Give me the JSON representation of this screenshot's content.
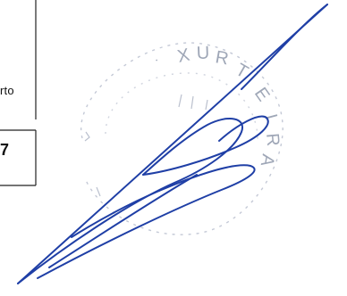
{
  "document": {
    "fragment_top": "rto",
    "fragment_bottom": "7"
  },
  "stamp": {
    "text": "XURTEIRA",
    "color": "#9aa3b5"
  },
  "signature": {
    "color": "#1f3fa6"
  }
}
